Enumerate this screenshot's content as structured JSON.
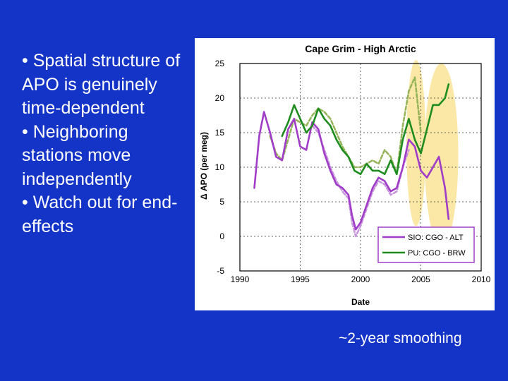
{
  "bullets": [
    "• Spatial structure of APO is genuinely time-dependent",
    "• Neighboring stations move independently",
    "• Watch out for end-effects"
  ],
  "caption": "~2-year smoothing",
  "colors": {
    "background": "#1433c7",
    "purple": "#a03cc8",
    "purple_light": "#c896dc",
    "green": "#1e8c1e",
    "green_light": "#96b45a",
    "highlight": "#fbe8a6",
    "legend_border": "#a03cc8"
  },
  "chart_data": {
    "type": "line",
    "title": "Cape Grim - High Arctic",
    "xlabel": "Date",
    "ylabel": "Δ APO (per meg)",
    "xlim": [
      1990,
      2010
    ],
    "ylim": [
      -5,
      25
    ],
    "xticks": [
      "1990",
      "1995",
      "2000",
      "2005",
      "2010"
    ],
    "yticks": [
      "25",
      "20",
      "15",
      "10",
      "5",
      "0",
      "-5"
    ],
    "legend_position": "bottom-right",
    "highlights": [
      {
        "x_center": 2004.6,
        "x_halfwidth": 0.8,
        "y_center": 13.5,
        "y_halfwidth": 12
      },
      {
        "x_center": 2006.7,
        "x_halfwidth": 1.4,
        "y_center": 11.8,
        "y_halfwidth": 13.2
      }
    ],
    "series": [
      {
        "name": "PU: CGO - BRW (dashed)",
        "color": "#96b45a",
        "dashed": true,
        "legend": false,
        "x": [
          1992.5,
          1993.0,
          1993.5,
          1994.0,
          1994.5,
          1995.0,
          1995.5,
          1996.0,
          1996.5,
          1997.0,
          1997.5,
          1998.0,
          1998.5,
          1999.0,
          1999.5,
          2000.0,
          2000.5,
          2001.0,
          2001.5,
          2002.0,
          2002.5,
          2003.0,
          2003.5,
          2004.0,
          2004.5,
          2005.0
        ],
        "y": [
          14.5,
          12.0,
          11.0,
          14.0,
          17.0,
          16.5,
          16.0,
          17.5,
          18.5,
          18.0,
          17.0,
          15.0,
          13.0,
          11.5,
          10.0,
          10.0,
          10.5,
          11.0,
          10.5,
          12.5,
          11.5,
          9.0,
          16.0,
          21.0,
          23.0,
          15.0
        ]
      },
      {
        "name": "SIO: CGO - ALT (dashed)",
        "color": "#c896dc",
        "dashed": true,
        "legend": false,
        "x": [
          1996.0,
          1996.5,
          1997.0,
          1997.5,
          1998.0,
          1998.5,
          1999.0,
          1999.3,
          1999.6,
          2000.0,
          2000.5,
          2001.0,
          2001.5,
          2002.0,
          2002.5,
          2003.0,
          2003.5,
          2004.0
        ],
        "y": [
          16.0,
          15.0,
          12.5,
          10.0,
          8.0,
          6.5,
          5.5,
          2.0,
          0.0,
          1.5,
          4.0,
          6.5,
          8.0,
          7.5,
          6.0,
          6.5,
          10.0,
          12.5
        ]
      },
      {
        "name": "SIO: CGO - ALT",
        "color": "#a03cc8",
        "dashed": false,
        "legend": true,
        "x": [
          1991.2,
          1991.6,
          1992.0,
          1992.5,
          1993.0,
          1993.5,
          1994.0,
          1994.5,
          1995.0,
          1995.5,
          1996.0,
          1996.5,
          1997.0,
          1997.5,
          1998.0,
          1998.5,
          1999.0,
          1999.3,
          1999.6,
          2000.0,
          2000.5,
          2001.0,
          2001.5,
          2002.0,
          2002.5,
          2003.0,
          2003.5,
          2004.0,
          2004.5,
          2005.0,
          2005.5,
          2006.0,
          2006.5,
          2007.0,
          2007.3
        ],
        "y": [
          7.0,
          14.5,
          18.0,
          15.0,
          11.5,
          11.0,
          15.5,
          17.0,
          13.0,
          12.5,
          16.5,
          15.5,
          12.0,
          9.5,
          7.5,
          7.0,
          6.0,
          3.0,
          1.0,
          2.0,
          4.5,
          7.0,
          8.5,
          8.0,
          6.5,
          7.0,
          10.0,
          14.0,
          13.0,
          9.5,
          8.5,
          10.0,
          11.5,
          7.0,
          2.5
        ]
      },
      {
        "name": "PU: CGO - BRW",
        "color": "#1e8c1e",
        "dashed": false,
        "legend": true,
        "x": [
          1993.5,
          1994.0,
          1994.5,
          1995.0,
          1995.5,
          1996.0,
          1996.5,
          1997.0,
          1997.5,
          1998.0,
          1998.5,
          1999.0,
          1999.5,
          2000.0,
          2000.5,
          2001.0,
          2001.5,
          2002.0,
          2002.5,
          2003.0,
          2003.5,
          2004.0,
          2004.5,
          2005.0,
          2005.5,
          2006.0,
          2006.5,
          2007.0,
          2007.3
        ],
        "y": [
          14.5,
          16.5,
          19.0,
          17.0,
          15.0,
          16.0,
          18.5,
          17.0,
          16.0,
          14.0,
          12.5,
          11.5,
          9.5,
          9.0,
          10.5,
          9.5,
          9.5,
          9.0,
          11.0,
          9.0,
          14.0,
          17.0,
          14.0,
          12.0,
          15.5,
          19.0,
          19.0,
          20.0,
          22.0
        ]
      }
    ]
  }
}
